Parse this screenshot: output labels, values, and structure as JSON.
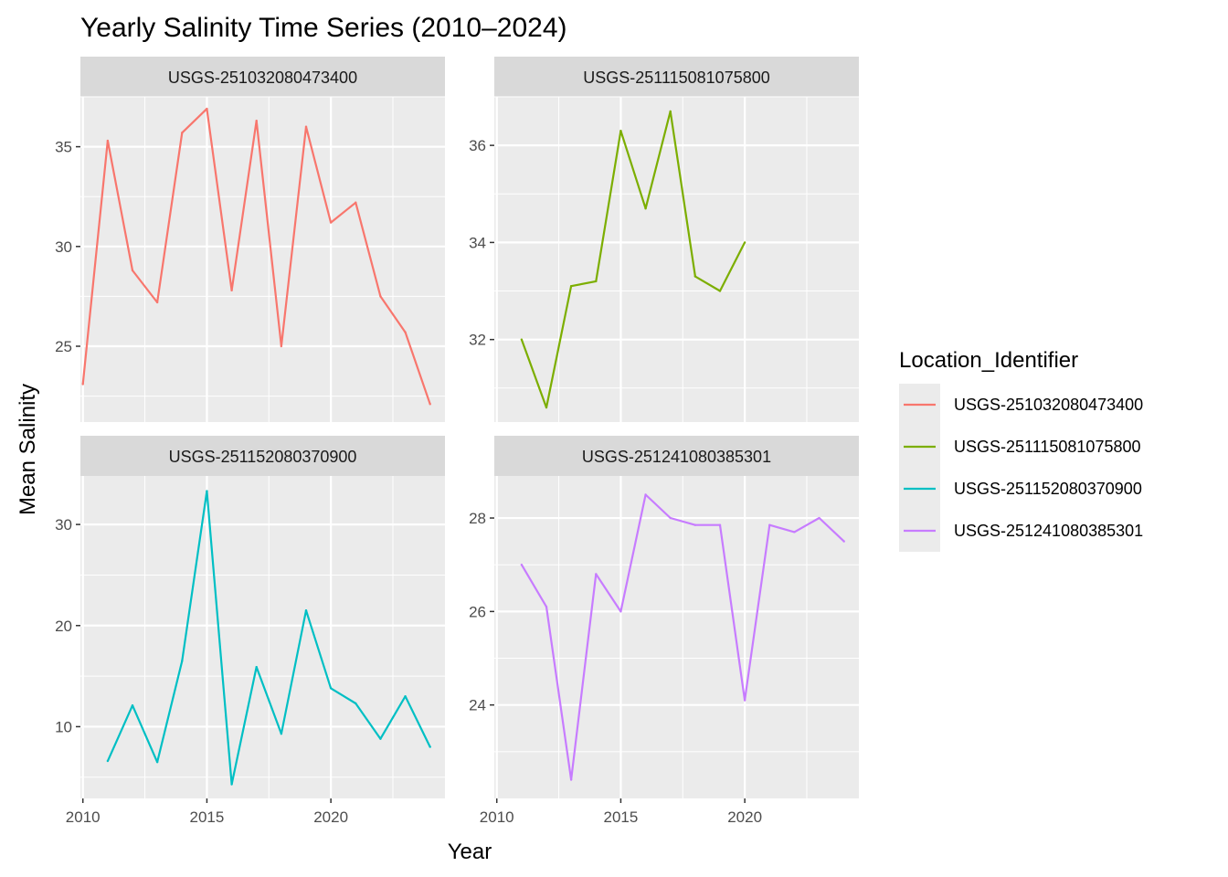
{
  "chart_data": {
    "type": "line",
    "title": "Yearly Salinity Time Series (2010–2024)",
    "xlabel": "Year",
    "ylabel": "Mean Salinity",
    "legend": {
      "title": "Location_Identifier",
      "placement": "right",
      "entries": [
        {
          "label": "USGS-251032080473400",
          "color": "#F8766D"
        },
        {
          "label": "USGS-251115081075800",
          "color": "#7CAE00"
        },
        {
          "label": "USGS-251152080370900",
          "color": "#00BFC4"
        },
        {
          "label": "USGS-251241080385301",
          "color": "#C77CFF"
        }
      ]
    },
    "xlim": [
      2009.9,
      2024.6
    ],
    "x_ticks": [
      2010,
      2015,
      2020
    ],
    "x_tick_labels": [
      "2010",
      "2015",
      "2020"
    ],
    "grid": true,
    "panels": [
      {
        "name": "USGS-251032080473400",
        "color": "#F8766D",
        "ylim": [
          21.2,
          37.5
        ],
        "y_ticks": [
          25,
          30,
          35
        ],
        "y_tick_labels": [
          "25",
          "30",
          "35"
        ],
        "x": [
          2010,
          2011,
          2012,
          2013,
          2014,
          2015,
          2016,
          2017,
          2018,
          2019,
          2020,
          2021,
          2022,
          2023,
          2024
        ],
        "y": [
          23.1,
          35.3,
          28.8,
          27.2,
          35.7,
          36.9,
          27.8,
          36.3,
          25.0,
          36.0,
          31.2,
          32.2,
          27.5,
          25.7,
          22.1
        ]
      },
      {
        "name": "USGS-251115081075800",
        "color": "#7CAE00",
        "ylim": [
          30.3,
          37.0
        ],
        "y_ticks": [
          32,
          34,
          36
        ],
        "y_tick_labels": [
          "32",
          "34",
          "36"
        ],
        "x": [
          2011,
          2012,
          2013,
          2014,
          2015,
          2016,
          2017,
          2018,
          2019,
          2020
        ],
        "y": [
          32.0,
          30.6,
          33.1,
          33.2,
          36.3,
          34.7,
          36.7,
          33.3,
          33.0,
          34.0
        ]
      },
      {
        "name": "USGS-251152080370900",
        "color": "#00BFC4",
        "ylim": [
          2.9,
          34.8
        ],
        "y_ticks": [
          10,
          20,
          30
        ],
        "y_tick_labels": [
          "10",
          "20",
          "30"
        ],
        "x": [
          2011,
          2012,
          2013,
          2014,
          2015,
          2016,
          2017,
          2018,
          2019,
          2020,
          2021,
          2022,
          2023,
          2024
        ],
        "y": [
          6.6,
          12.1,
          6.5,
          16.5,
          33.3,
          4.3,
          15.9,
          9.3,
          21.5,
          13.8,
          12.3,
          8.8,
          13.0,
          8.0
        ]
      },
      {
        "name": "USGS-251241080385301",
        "color": "#C77CFF",
        "ylim": [
          22.0,
          28.9
        ],
        "y_ticks": [
          24,
          26,
          28
        ],
        "y_tick_labels": [
          "24",
          "26",
          "28"
        ],
        "x": [
          2011,
          2012,
          2013,
          2014,
          2015,
          2016,
          2017,
          2018,
          2019,
          2020,
          2021,
          2022,
          2023,
          2024
        ],
        "y": [
          27.0,
          26.1,
          22.4,
          26.8,
          26.0,
          28.5,
          28.0,
          27.85,
          27.85,
          24.1,
          27.85,
          27.7,
          28.0,
          27.5
        ]
      }
    ]
  }
}
